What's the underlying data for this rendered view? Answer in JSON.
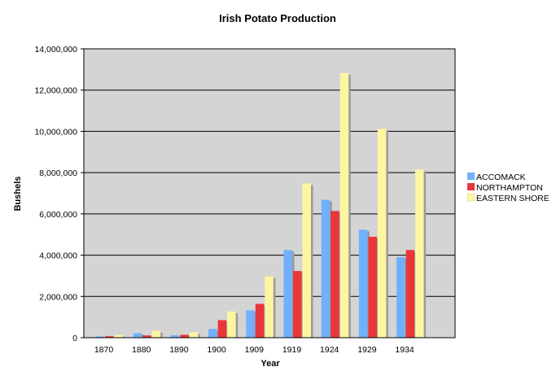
{
  "chart_data": {
    "type": "bar",
    "title": "Irish Potato Production",
    "xlabel": "Year",
    "ylabel": "Bushels",
    "categories": [
      "1870",
      "1880",
      "1890",
      "1900",
      "1909",
      "1919",
      "1924",
      "1929",
      "1934"
    ],
    "series": [
      {
        "name": "ACCOMACK",
        "color": "#70b0ff",
        "values": [
          60000,
          220000,
          120000,
          420000,
          1330000,
          4250000,
          6680000,
          5230000,
          3900000
        ]
      },
      {
        "name": "NORTHAMPTON",
        "color": "#e8363a",
        "values": [
          70000,
          110000,
          140000,
          850000,
          1640000,
          3230000,
          6140000,
          4890000,
          4250000
        ]
      },
      {
        "name": "EASTERN SHORE",
        "color": "#fdf6a0",
        "values": [
          130000,
          330000,
          260000,
          1270000,
          2970000,
          7480000,
          12820000,
          10120000,
          8150000
        ]
      }
    ],
    "ylim": [
      0,
      14000000
    ],
    "yticks": [
      "0",
      "2,000,000",
      "4,000,000",
      "6,000,000",
      "8,000,000",
      "10,000,000",
      "12,000,000",
      "14,000,000"
    ],
    "grid": true,
    "legend_position": "right"
  }
}
